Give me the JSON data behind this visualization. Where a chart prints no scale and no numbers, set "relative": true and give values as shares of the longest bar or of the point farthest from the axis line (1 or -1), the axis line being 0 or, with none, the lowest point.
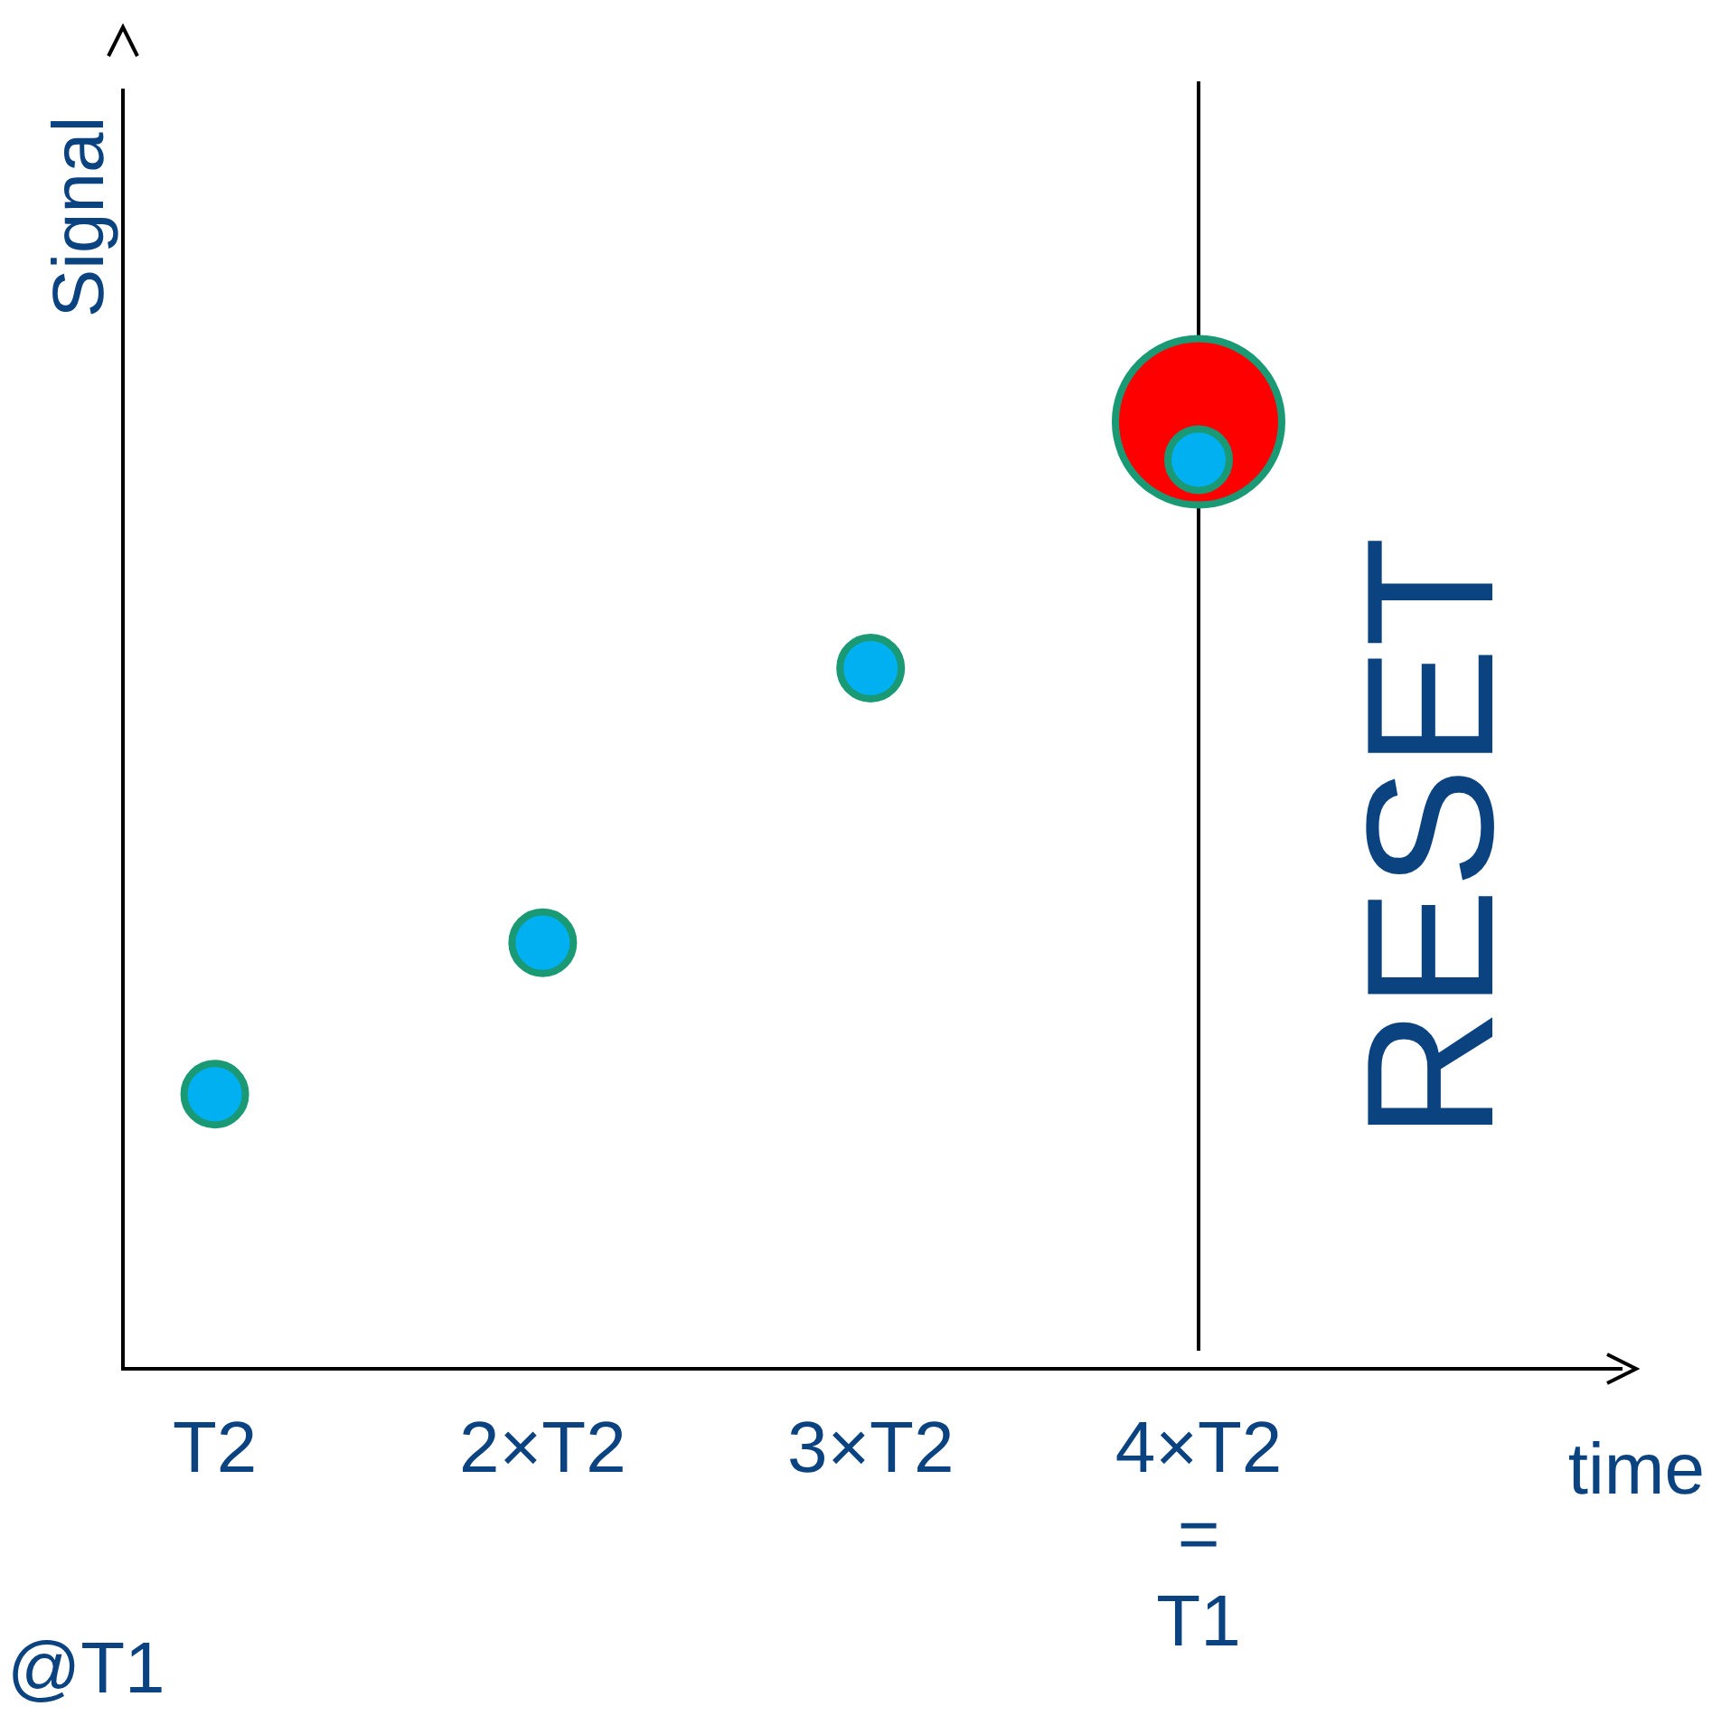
{
  "chart_data": {
    "type": "scatter",
    "relative": true,
    "xlabel": "time",
    "ylabel": "Signal",
    "categories": [
      "T2",
      "2×T2",
      "3×T2",
      "4×T2 = T1"
    ],
    "series": [
      {
        "color": "#ff0000",
        "values": [
          null,
          null,
          null,
          1
        ]
      },
      {
        "color": "#00b0f0",
        "values": [
          0.29,
          0.45,
          0.74,
          0.96
        ]
      }
    ],
    "marker": "circle",
    "ref_lines": [
      {
        "axis": "x",
        "value": "4×T2 = T1",
        "label": "RESET",
        "color": "#000000"
      }
    ],
    "annotations": [
      "@T1"
    ]
  }
}
